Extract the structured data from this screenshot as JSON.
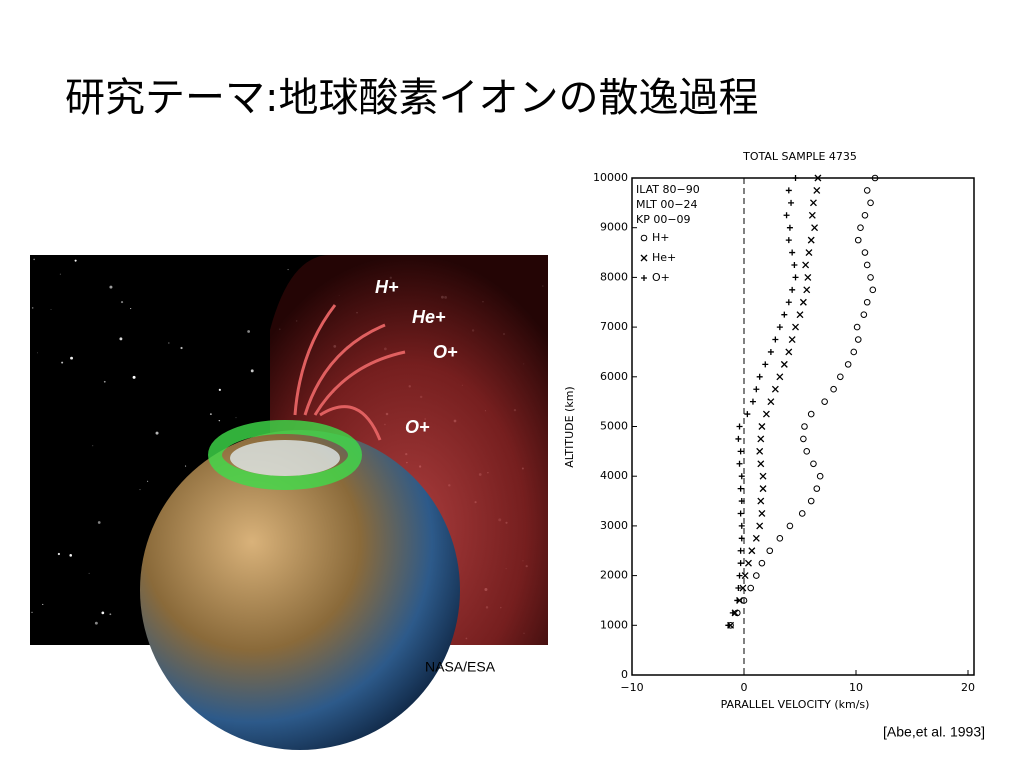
{
  "slide": {
    "title": "研究テーマ:地球酸素イオンの散逸過程",
    "image_credit": "NASA/ESA",
    "citation": "[Abe,et al. 1993]",
    "image_labels": [
      "H+",
      "He+",
      "O+",
      "O+"
    ]
  },
  "chart_data": {
    "type": "scatter",
    "title": "TOTAL SAMPLE 4735",
    "xlabel": "PARALLEL VELOCITY (km/s)",
    "ylabel": "ALTITUDE (km)",
    "annotations": [
      "ILAT 80−90",
      "MLT 00−24",
      "KP 00−09"
    ],
    "xlim": [
      -10,
      20
    ],
    "ylim": [
      0,
      10000
    ],
    "xticks": [
      {
        "value": -10,
        "label": "−10"
      },
      0,
      10,
      20
    ],
    "yticks": [
      0,
      1000,
      2000,
      3000,
      4000,
      5000,
      6000,
      7000,
      8000,
      9000,
      10000
    ],
    "reference_x": 0,
    "color": "#000000",
    "series": [
      {
        "name": "H+",
        "marker": "o",
        "x": [
          -1.2,
          -0.6,
          0.0,
          0.6,
          1.1,
          1.6,
          2.3,
          3.2,
          4.1,
          5.2,
          6.0,
          6.5,
          6.8,
          6.2,
          5.6,
          5.3,
          5.4,
          6.0,
          7.2,
          8.0,
          8.6,
          9.3,
          9.8,
          10.2,
          10.1,
          10.7,
          11.0,
          11.5,
          11.3,
          11.0,
          10.8,
          10.2,
          10.4,
          10.8,
          11.3,
          11.0,
          11.7
        ],
        "values": [
          1000,
          1250,
          1500,
          1750,
          2000,
          2250,
          2500,
          2750,
          3000,
          3250,
          3500,
          3750,
          4000,
          4250,
          4500,
          4750,
          5000,
          5250,
          5500,
          5750,
          6000,
          6250,
          6500,
          6750,
          7000,
          7250,
          7500,
          7750,
          8000,
          8250,
          8500,
          8750,
          9000,
          9250,
          9500,
          9750,
          10000
        ]
      },
      {
        "name": "He+",
        "marker": "x",
        "x": [
          -1.2,
          -0.8,
          -0.4,
          -0.1,
          0.1,
          0.4,
          0.7,
          1.1,
          1.4,
          1.6,
          1.5,
          1.7,
          1.7,
          1.5,
          1.4,
          1.5,
          1.6,
          2.0,
          2.4,
          2.8,
          3.2,
          3.6,
          4.0,
          4.3,
          4.6,
          5.0,
          5.3,
          5.6,
          5.7,
          5.5,
          5.8,
          6.0,
          6.3,
          6.1,
          6.2,
          6.5,
          6.6
        ],
        "values": [
          1000,
          1250,
          1500,
          1750,
          2000,
          2250,
          2500,
          2750,
          3000,
          3250,
          3500,
          3750,
          4000,
          4250,
          4500,
          4750,
          5000,
          5250,
          5500,
          5750,
          6000,
          6250,
          6500,
          6750,
          7000,
          7250,
          7500,
          7750,
          8000,
          8250,
          8500,
          8750,
          9000,
          9250,
          9500,
          9750,
          10000
        ]
      },
      {
        "name": "O+",
        "marker": "+",
        "x": [
          -1.4,
          -1.0,
          -0.6,
          -0.5,
          -0.4,
          -0.3,
          -0.3,
          -0.2,
          -0.2,
          -0.3,
          -0.2,
          -0.3,
          -0.2,
          -0.4,
          -0.3,
          -0.5,
          -0.4,
          0.3,
          0.8,
          1.1,
          1.4,
          1.9,
          2.4,
          2.8,
          3.2,
          3.6,
          4.0,
          4.3,
          4.6,
          4.5,
          4.3,
          4.0,
          4.1,
          3.8,
          4.2,
          4.0,
          4.6
        ],
        "values": [
          1000,
          1250,
          1500,
          1750,
          2000,
          2250,
          2500,
          2750,
          3000,
          3250,
          3500,
          3750,
          4000,
          4250,
          4500,
          4750,
          5000,
          5250,
          5500,
          5750,
          6000,
          6250,
          6500,
          6750,
          7000,
          7250,
          7500,
          7750,
          8000,
          8250,
          8500,
          8750,
          9000,
          9250,
          9500,
          9750,
          10000
        ]
      }
    ]
  }
}
